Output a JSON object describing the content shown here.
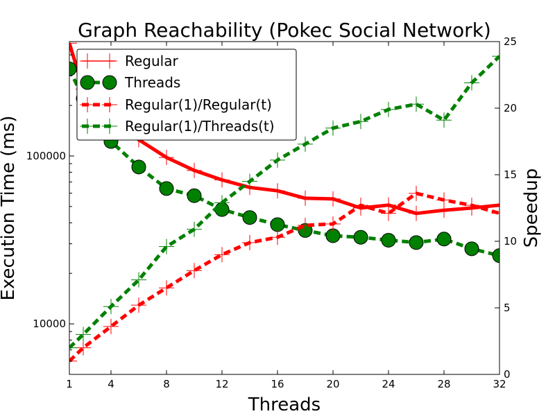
{
  "chart_data": {
    "type": "line",
    "title": "Graph Reachability (Pokec Social Network)",
    "xlabel": "Threads",
    "ylabel_left": "Execution Time (ms)",
    "ylabel_right": "Speedup",
    "x_ticks": [
      "1",
      "4",
      "8",
      "12",
      "16",
      "20",
      "24",
      "28",
      "32"
    ],
    "xlim": [
      1,
      32
    ],
    "y_left_scale": "log",
    "y_left_lim": [
      5000,
      480000
    ],
    "y_left_ticks": [
      {
        "value": 10000,
        "label": "10000"
      },
      {
        "value": 100000,
        "label": "100000"
      }
    ],
    "y_right_lim": [
      0,
      25
    ],
    "y_right_ticks": [
      "0",
      "5",
      "10",
      "15",
      "20",
      "25"
    ],
    "grid": false,
    "legend_position": "top-left",
    "x": [
      1,
      2,
      4,
      6,
      8,
      10,
      12,
      14,
      16,
      18,
      20,
      22,
      24,
      26,
      28,
      30,
      32
    ],
    "series": [
      {
        "name": "Regular",
        "axis": "left",
        "color": "#ff0000",
        "style": "solid",
        "marker": "plus",
        "values": [
          470000,
          250000,
          170000,
          125000,
          98000,
          82000,
          72000,
          65000,
          62000,
          56000,
          55500,
          49000,
          51000,
          45500,
          47500,
          49000,
          51000
        ]
      },
      {
        "name": "Threads",
        "axis": "left",
        "color": "#008000",
        "style": "dashed",
        "marker": "circle",
        "values": [
          330000,
          220000,
          122000,
          86000,
          64000,
          58000,
          48000,
          43000,
          39000,
          36000,
          33500,
          32800,
          31500,
          30500,
          32000,
          28000,
          25500
        ]
      },
      {
        "name": "Regular(1)/Regular(t)",
        "axis": "right",
        "color": "#ff0000",
        "style": "dashed",
        "marker": "plus",
        "values": [
          1.0,
          2.0,
          3.6,
          5.2,
          6.5,
          7.8,
          9.0,
          9.9,
          10.3,
          11.2,
          11.3,
          12.7,
          12.1,
          13.6,
          13.1,
          12.7,
          12.1
        ]
      },
      {
        "name": "Regular(1)/Threads(t)",
        "axis": "right",
        "color": "#008000",
        "style": "dashed",
        "marker": "plus",
        "values": [
          2.0,
          3.0,
          5.1,
          7.1,
          9.6,
          10.9,
          12.9,
          14.5,
          16.1,
          17.3,
          18.5,
          19.0,
          19.9,
          20.3,
          19.1,
          21.9,
          23.9
        ]
      }
    ]
  }
}
